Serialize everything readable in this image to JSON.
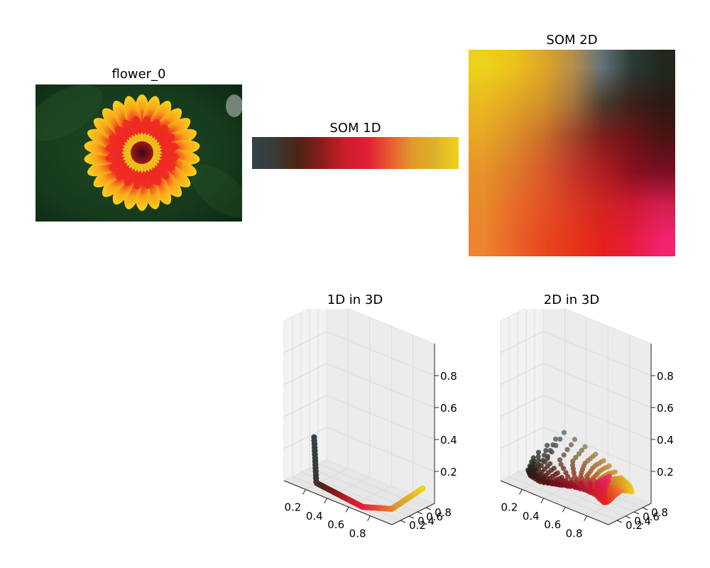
{
  "chart_data": [
    {
      "type": "image",
      "title": "flower_0",
      "subject": "flower"
    },
    {
      "type": "heatmap",
      "title": "SOM 1D",
      "colors": [
        "#324349",
        "#3a3a36",
        "#4b2414",
        "#8a1c1a",
        "#c81f28",
        "#e01e36",
        "#e85a30",
        "#e29a2c",
        "#ddb22a",
        "#f0d21c"
      ]
    },
    {
      "type": "heatmap",
      "title": "SOM 2D",
      "grid": [
        [
          "#ecd21a",
          "#ecc31c",
          "#e0a627",
          "#b58f4b",
          "#62727a",
          "#2a3b35",
          "#21281e"
        ],
        [
          "#eab922",
          "#e2a624",
          "#d39428",
          "#a5743f",
          "#493e30",
          "#3a2118",
          "#2e1816"
        ],
        [
          "#e8a724",
          "#dc8f29",
          "#cb6f2a",
          "#a2462a",
          "#7e1f1d",
          "#6d1316",
          "#4a1412"
        ],
        [
          "#e7932b",
          "#df7a2a",
          "#d85a2a",
          "#c5362a",
          "#b01e22",
          "#8a0f1e",
          "#7a0e22"
        ],
        [
          "#e98a2a",
          "#e86b2a",
          "#e45326",
          "#d83a24",
          "#d0251f",
          "#d01a33",
          "#d41f50"
        ],
        [
          "#ee8430",
          "#ea6428",
          "#e8481f",
          "#e6361a",
          "#e4211c",
          "#e81c3e",
          "#f2226e"
        ]
      ]
    },
    {
      "type": "scatter3d",
      "title": "1D in 3D",
      "xticks": [
        "0.2",
        "0.4",
        "0.6",
        "0.8"
      ],
      "yticks": [
        "0.2",
        "0.4",
        "0.6",
        "0.8"
      ],
      "zticks": [
        "0.2",
        "0.4",
        "0.6",
        "0.8"
      ]
    },
    {
      "type": "scatter3d",
      "title": "2D in 3D",
      "xticks": [
        "0.2",
        "0.4",
        "0.6",
        "0.8"
      ],
      "yticks": [
        "0.2",
        "0.4",
        "0.6",
        "0.8"
      ],
      "zticks": [
        "0.2",
        "0.4",
        "0.6",
        "0.8"
      ]
    }
  ]
}
